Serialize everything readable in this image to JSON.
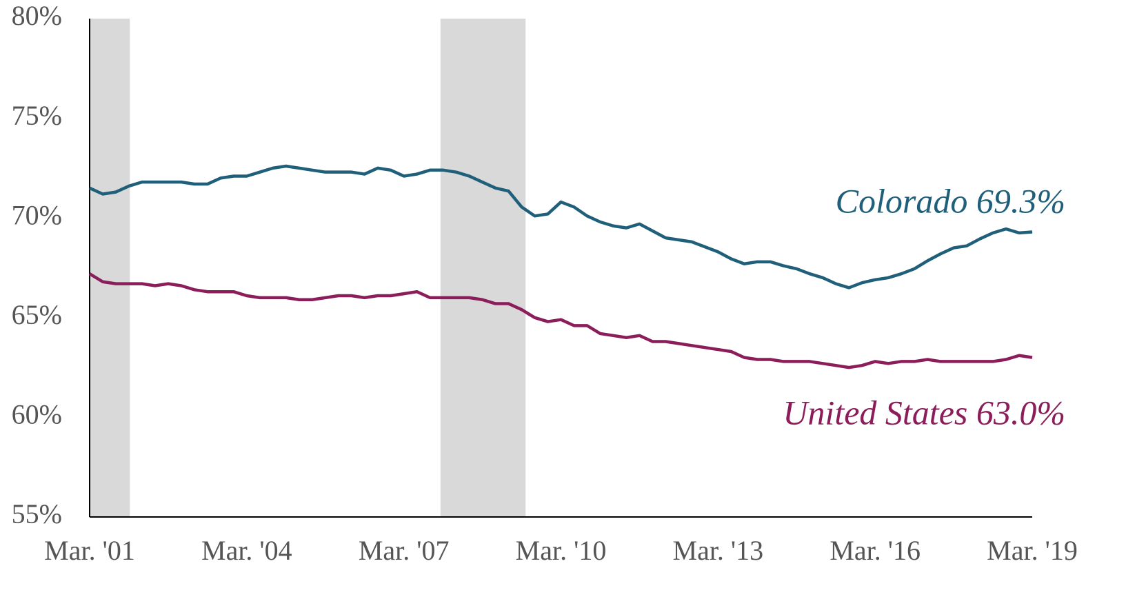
{
  "chart_data": {
    "type": "line",
    "categories": [
      "Mar. '01",
      null,
      null,
      null,
      null,
      null,
      null,
      null,
      null,
      null,
      null,
      null,
      "Mar. '04",
      null,
      null,
      null,
      null,
      null,
      null,
      null,
      null,
      null,
      null,
      null,
      "Mar. '07",
      null,
      null,
      null,
      null,
      null,
      null,
      null,
      null,
      null,
      null,
      null,
      "Mar. '10",
      null,
      null,
      null,
      null,
      null,
      null,
      null,
      null,
      null,
      null,
      null,
      "Mar. '13",
      null,
      null,
      null,
      null,
      null,
      null,
      null,
      null,
      null,
      null,
      null,
      "Mar. '16",
      null,
      null,
      null,
      null,
      null,
      null,
      null,
      null,
      null,
      null,
      null,
      "Mar. '19"
    ],
    "series": [
      {
        "name": "Colorado",
        "color": "#1f5f7a",
        "values": [
          71.5,
          71.2,
          71.3,
          71.6,
          71.8,
          71.8,
          71.8,
          71.8,
          71.7,
          71.7,
          72.0,
          72.1,
          72.1,
          72.3,
          72.5,
          72.6,
          72.5,
          72.4,
          72.3,
          72.3,
          72.3,
          72.2,
          72.5,
          72.4,
          72.1,
          72.2,
          72.4,
          72.4,
          72.3,
          72.1,
          71.8,
          71.5,
          71.35,
          70.55,
          70.1,
          70.2,
          70.8,
          70.55,
          70.1,
          69.8,
          69.6,
          69.5,
          69.7,
          69.35,
          69.0,
          68.9,
          68.8,
          68.55,
          68.3,
          67.95,
          67.7,
          67.8,
          67.8,
          67.6,
          67.45,
          67.2,
          67.0,
          66.7,
          66.5,
          66.75,
          66.9,
          67.0,
          67.2,
          67.45,
          67.85,
          68.2,
          68.5,
          68.6,
          68.95,
          69.25,
          69.45,
          69.25,
          69.3
        ]
      },
      {
        "name": "United States",
        "color": "#8b1e5a",
        "values": [
          67.2,
          66.8,
          66.7,
          66.7,
          66.7,
          66.6,
          66.7,
          66.6,
          66.4,
          66.3,
          66.3,
          66.3,
          66.1,
          66.0,
          66.0,
          66.0,
          65.9,
          65.9,
          66.0,
          66.1,
          66.1,
          66.0,
          66.1,
          66.1,
          66.2,
          66.3,
          66.0,
          66.0,
          66.0,
          66.0,
          65.9,
          65.7,
          65.7,
          65.4,
          65.0,
          64.8,
          64.9,
          64.6,
          64.6,
          64.2,
          64.1,
          64.0,
          64.1,
          63.8,
          63.8,
          63.7,
          63.6,
          63.5,
          63.4,
          63.3,
          63.0,
          62.9,
          62.9,
          62.8,
          62.8,
          62.8,
          62.7,
          62.6,
          62.5,
          62.6,
          62.8,
          62.7,
          62.8,
          62.8,
          62.9,
          62.8,
          62.8,
          62.8,
          62.8,
          62.8,
          62.9,
          63.1,
          63.0
        ]
      }
    ],
    "annotations": [
      "Colorado 69.3%",
      "United States 63.0%"
    ],
    "shaded_ranges": [
      [
        0,
        3.07
      ],
      [
        26.8,
        33.3
      ]
    ],
    "ylim": [
      55,
      80
    ],
    "yticks": [
      {
        "value": 55,
        "label": "55%"
      },
      {
        "value": 60,
        "label": "60%"
      },
      {
        "value": 65,
        "label": "65%"
      },
      {
        "value": 70,
        "label": "70%"
      },
      {
        "value": 75,
        "label": "75%"
      },
      {
        "value": 80,
        "label": "80%"
      }
    ]
  }
}
